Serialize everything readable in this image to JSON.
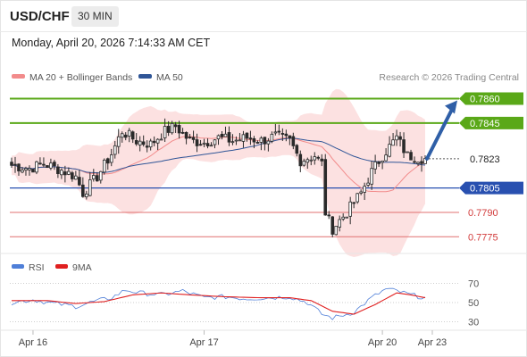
{
  "header": {
    "symbol": "USD/CHF",
    "timeframe": "30 MIN",
    "datetime": "Monday, April 20, 2026 7:14:33 AM CET"
  },
  "legend": {
    "ma20_label": "MA 20 + Bollinger Bands",
    "ma50_label": "MA 50",
    "copyright": "Research © 2026 Trading Central",
    "ma20_color": "#f28b8b",
    "ma50_color": "#2f5597"
  },
  "rsi_legend": {
    "rsi_label": "RSI",
    "ma_label": "9MA",
    "rsi_color": "#4f7fd8",
    "ma_color": "#e02020"
  },
  "colors": {
    "resistance": "#5aa818",
    "support_blue": "#2850b0",
    "support_red": "#e07070",
    "band_fill": "#fbdcdc",
    "candle": "#2a2a2a",
    "arrow": "#2f5fa7"
  },
  "chart_data": [
    {
      "type": "candlestick",
      "title": "USD/CHF",
      "ylim": [
        0.7768,
        0.7868
      ],
      "x_ticks": [
        {
          "label": "Apr 16",
          "index": 6
        },
        {
          "label": "Apr 17",
          "index": 54
        },
        {
          "label": "Apr 20",
          "index": 104
        },
        {
          "label": "Apr 23",
          "index": 118
        }
      ],
      "levels": [
        {
          "value": 0.786,
          "label": "0.7860",
          "kind": "resistance"
        },
        {
          "value": 0.7845,
          "label": "0.7845",
          "kind": "resistance"
        },
        {
          "value": 0.7823,
          "label": "0.7823",
          "kind": "last"
        },
        {
          "value": 0.7805,
          "label": "0.7805",
          "kind": "support"
        },
        {
          "value": 0.779,
          "label": "0.7790",
          "kind": "support-minor"
        },
        {
          "value": 0.7775,
          "label": "0.7775",
          "kind": "support-minor"
        }
      ],
      "anchors": [
        [
          0,
          0.7819
        ],
        [
          5,
          0.7817
        ],
        [
          9,
          0.782
        ],
        [
          14,
          0.7816
        ],
        [
          18,
          0.7812
        ],
        [
          20,
          0.7802
        ],
        [
          24,
          0.7812
        ],
        [
          28,
          0.7826
        ],
        [
          31,
          0.784
        ],
        [
          35,
          0.7834
        ],
        [
          39,
          0.7832
        ],
        [
          43,
          0.784
        ],
        [
          46,
          0.7843
        ],
        [
          50,
          0.7834
        ],
        [
          54,
          0.7833
        ],
        [
          58,
          0.7836
        ],
        [
          62,
          0.7834
        ],
        [
          66,
          0.7836
        ],
        [
          70,
          0.7834
        ],
        [
          74,
          0.7837
        ],
        [
          78,
          0.7834
        ],
        [
          81,
          0.7822
        ],
        [
          85,
          0.7825
        ],
        [
          87,
          0.782
        ],
        [
          88,
          0.779
        ],
        [
          90,
          0.778
        ],
        [
          94,
          0.779
        ],
        [
          98,
          0.7802
        ],
        [
          101,
          0.7815
        ],
        [
          104,
          0.7825
        ],
        [
          108,
          0.7836
        ],
        [
          111,
          0.7825
        ],
        [
          116,
          0.7823
        ]
      ]
    },
    {
      "type": "line",
      "title": "RSI",
      "ylim": [
        25,
        75
      ],
      "y_ticks": [
        70,
        50,
        30
      ],
      "series": [
        {
          "name": "RSI",
          "anchors": [
            [
              0,
              50
            ],
            [
              6,
              53
            ],
            [
              12,
              49
            ],
            [
              18,
              46
            ],
            [
              22,
              50
            ],
            [
              28,
              55
            ],
            [
              32,
              63
            ],
            [
              36,
              60
            ],
            [
              42,
              58
            ],
            [
              48,
              62
            ],
            [
              54,
              55
            ],
            [
              60,
              56
            ],
            [
              66,
              54
            ],
            [
              72,
              55
            ],
            [
              78,
              56
            ],
            [
              83,
              50
            ],
            [
              87,
              38
            ],
            [
              90,
              34
            ],
            [
              96,
              40
            ],
            [
              101,
              55
            ],
            [
              105,
              64
            ],
            [
              108,
              62
            ],
            [
              112,
              58
            ],
            [
              116,
              55
            ]
          ]
        },
        {
          "name": "9MA",
          "anchors": [
            [
              0,
              52
            ],
            [
              10,
              52
            ],
            [
              18,
              49
            ],
            [
              26,
              51
            ],
            [
              34,
              58
            ],
            [
              42,
              60
            ],
            [
              50,
              58
            ],
            [
              60,
              56
            ],
            [
              70,
              55
            ],
            [
              78,
              55
            ],
            [
              84,
              52
            ],
            [
              90,
              41
            ],
            [
              96,
              38
            ],
            [
              102,
              48
            ],
            [
              108,
              60
            ],
            [
              112,
              58
            ],
            [
              116,
              55
            ]
          ]
        }
      ]
    }
  ]
}
